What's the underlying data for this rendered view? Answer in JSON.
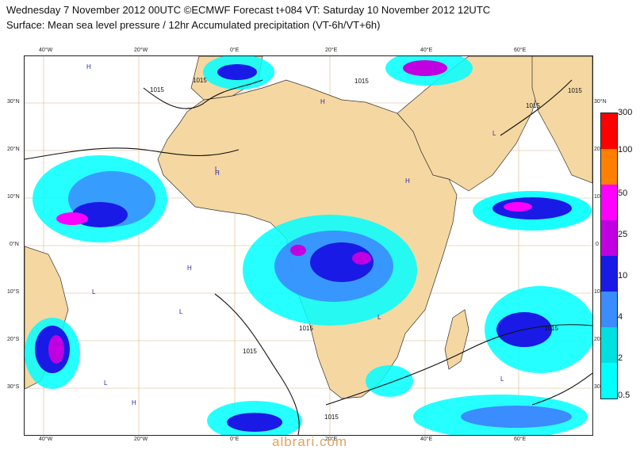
{
  "header": {
    "line1": "Wednesday 7 November 2012 00UTC ©ECMWF Forecast t+084 VT: Saturday 10 November 2012 12UTC",
    "line2": "Surface: Mean sea level pressure / 12hr Accumulated precipitation (VT-6h/VT+6h)"
  },
  "axes": {
    "top_lon": [
      "40°W",
      "20°W",
      "0°E",
      "20°E",
      "40°E",
      "60°E"
    ],
    "bottom_lon": [
      "40°W",
      "20°W",
      "0°E",
      "20°E",
      "40°E",
      "60°E"
    ],
    "left_lat": [
      "30°N",
      "20°N",
      "10°N",
      "0°N",
      "10°S",
      "20°S",
      "30°S"
    ],
    "right_lat": [
      "30°N",
      "20",
      "10",
      "0",
      "10",
      "20",
      "30"
    ]
  },
  "isobar_labels": [
    "1015",
    "1015",
    "1015",
    "1015",
    "1015",
    "1015",
    "1015",
    "1015",
    "1015"
  ],
  "pressure_centers": [
    "H",
    "H",
    "H",
    "H",
    "H",
    "H",
    "L",
    "L",
    "L",
    "L",
    "L",
    "L",
    "L"
  ],
  "legend": {
    "labels": [
      "300",
      "100",
      "50",
      "25",
      "10",
      "4",
      "2",
      "0.5"
    ],
    "colors": [
      "#ff0000",
      "#ff7f00",
      "#ff00ff",
      "#c000e0",
      "#1a1ae6",
      "#3a8cff",
      "#00e0e0",
      "#00ffff"
    ]
  },
  "colors": {
    "land": "#f5d7a1",
    "ocean": "#ffffff",
    "grid": "#d8b48a",
    "isobar": "#111111"
  },
  "watermark": "albrari.com"
}
